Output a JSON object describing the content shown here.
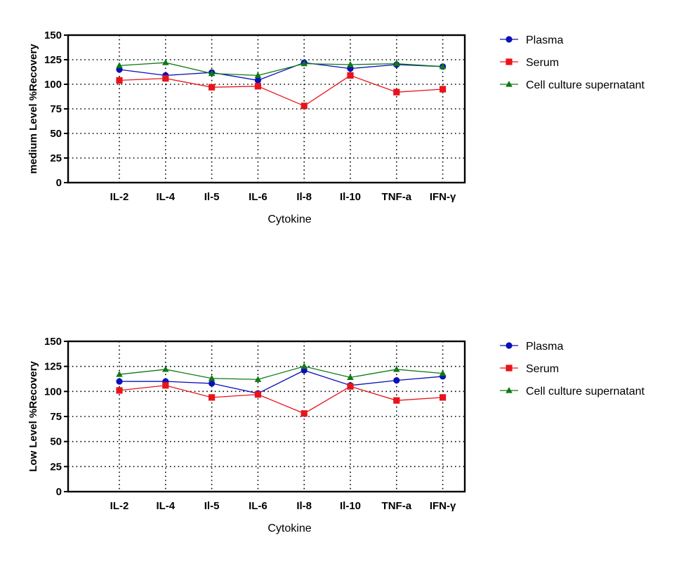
{
  "colors": {
    "plasma": "#0a10b8",
    "serum": "#e8141b",
    "supernatant": "#0d7a14"
  },
  "chart_data": [
    {
      "type": "line",
      "categories": [
        "IL-2",
        "IL-4",
        "Il-5",
        "IL-6",
        "Il-8",
        "Il-10",
        "TNF-a",
        "IFN-γ"
      ],
      "ylabel": "medium Level %Recovery",
      "xlabel": "Cytokine",
      "ylim": [
        0,
        150
      ],
      "yticks": [
        0,
        25,
        50,
        75,
        100,
        125,
        150
      ],
      "grid": "dotted",
      "legend_position": "right",
      "series": [
        {
          "name": "Plasma",
          "marker": "circle",
          "color_key": "plasma",
          "values": [
            115,
            109,
            112,
            104,
            122,
            116,
            120,
            118
          ]
        },
        {
          "name": "Serum",
          "marker": "square",
          "color_key": "serum",
          "values": [
            104,
            106,
            97,
            98,
            78,
            109,
            92,
            95
          ]
        },
        {
          "name": "Cell culture supernatant",
          "marker": "triangle",
          "color_key": "supernatant",
          "values": [
            119,
            122,
            111,
            109,
            121,
            120,
            121,
            118
          ]
        }
      ]
    },
    {
      "type": "line",
      "categories": [
        "IL-2",
        "IL-4",
        "Il-5",
        "IL-6",
        "Il-8",
        "Il-10",
        "TNF-a",
        "IFN-γ"
      ],
      "ylabel": "Low Level %Recovery",
      "xlabel": "Cytokine",
      "ylim": [
        0,
        150
      ],
      "yticks": [
        0,
        25,
        50,
        75,
        100,
        125,
        150
      ],
      "grid": "dotted",
      "legend_position": "right",
      "series": [
        {
          "name": "Plasma",
          "marker": "circle",
          "color_key": "plasma",
          "values": [
            110,
            110,
            108,
            98,
            121,
            106,
            111,
            115
          ]
        },
        {
          "name": "Serum",
          "marker": "square",
          "color_key": "serum",
          "values": [
            101,
            106,
            94,
            97,
            78,
            105,
            91,
            94
          ]
        },
        {
          "name": "Cell culture supernatant",
          "marker": "triangle",
          "color_key": "supernatant",
          "values": [
            117,
            122,
            113,
            112,
            125,
            114,
            122,
            118
          ]
        }
      ]
    }
  ]
}
